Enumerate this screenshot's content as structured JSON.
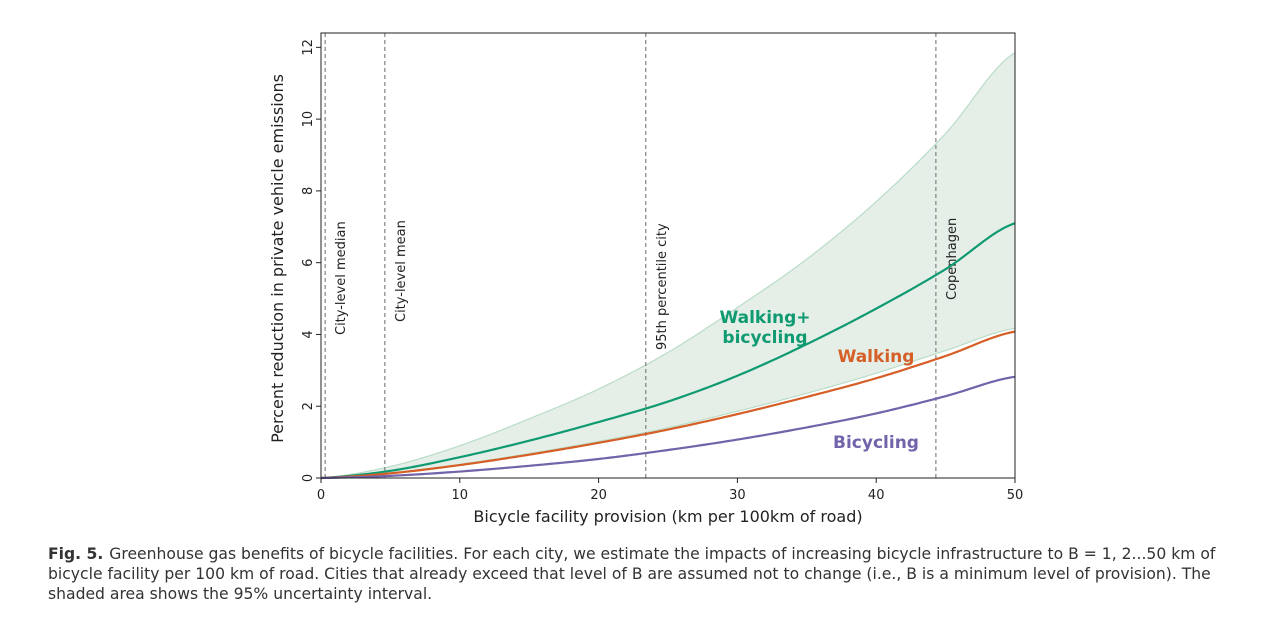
{
  "chart_data": {
    "type": "line",
    "xlabel": "Bicycle facility provision (km per 100km of road)",
    "ylabel": "Percent reduction in private vehicle emissions",
    "xlim": [
      0,
      50
    ],
    "ylim": [
      0,
      12.4
    ],
    "xticks": [
      0,
      10,
      20,
      30,
      40,
      50
    ],
    "yticks": [
      0,
      2,
      4,
      6,
      8,
      10,
      12
    ],
    "grid": false,
    "legend": "none (series labelled inline)",
    "x": [
      0,
      5,
      10,
      15,
      20,
      25,
      30,
      35,
      40,
      45,
      50
    ],
    "series": [
      {
        "name": "Walking+\nbicycling",
        "color": "#0f9a72",
        "values": [
          0,
          0.2,
          0.58,
          1.04,
          1.56,
          2.13,
          2.85,
          3.73,
          4.72,
          5.82,
          7.1
        ]
      },
      {
        "name": "Walking",
        "color": "#d55f26",
        "values": [
          0,
          0.13,
          0.36,
          0.65,
          0.98,
          1.35,
          1.78,
          2.26,
          2.78,
          3.4,
          4.08
        ]
      },
      {
        "name": "Bicycling",
        "color": "#7263ab",
        "values": [
          0,
          0.06,
          0.18,
          0.34,
          0.53,
          0.78,
          1.07,
          1.41,
          1.8,
          2.28,
          2.82
        ]
      }
    ],
    "uncertainty_band": {
      "color": "#e5efe7",
      "edge_color": "#b9dcc8",
      "lower": [
        0,
        0.14,
        0.38,
        0.68,
        1.02,
        1.4,
        1.86,
        2.36,
        2.92,
        3.55,
        4.17
      ],
      "upper": [
        0,
        0.32,
        0.9,
        1.65,
        2.48,
        3.5,
        4.75,
        6.1,
        7.7,
        9.6,
        11.85
      ]
    },
    "reference_lines": [
      {
        "x": 0.3,
        "label": "City-level median"
      },
      {
        "x": 4.6,
        "label": "City-level mean"
      },
      {
        "x": 23.4,
        "label": "95th percentile city"
      },
      {
        "x": 44.3,
        "label": "Copenhagen"
      }
    ]
  },
  "caption": {
    "label": "Fig. 5.",
    "text": "Greenhouse gas benefits of bicycle facilities. For each city, we estimate the impacts of increasing bicycle infrastructure to B = 1, 2...50 km of bicycle facility per 100 km of road. Cities that already exceed that level of B are assumed not to change (i.e., B is a minimum level of provision). The shaded area shows the 95% uncertainty interval."
  }
}
